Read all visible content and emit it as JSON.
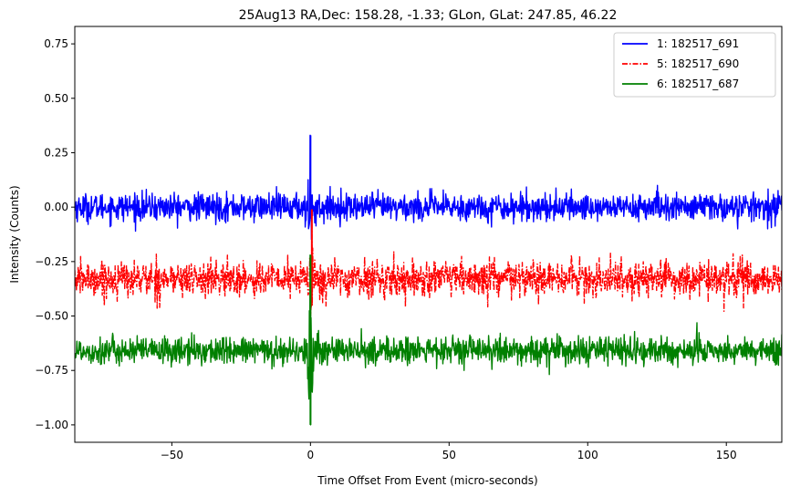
{
  "chart_data": {
    "type": "line",
    "title": "25Aug13 RA,Dec:  158.28,  -1.33; GLon, GLat:  247.85,  46.22",
    "xlabel": "Time Offset From Event (micro-seconds)",
    "ylabel": "Intensity (Counts)",
    "xlim": [
      -85,
      170
    ],
    "ylim": [
      -1.08,
      0.83
    ],
    "xticks": [
      -50,
      0,
      50,
      100,
      150
    ],
    "xtick_labels": [
      "−50",
      "0",
      "50",
      "100",
      "150"
    ],
    "yticks": [
      -1.0,
      -0.75,
      -0.5,
      -0.25,
      0.0,
      0.25,
      0.5,
      0.75
    ],
    "ytick_labels": [
      "−1.00",
      "−0.75",
      "−0.50",
      "−0.25",
      "0.00",
      "0.25",
      "0.50",
      "0.75"
    ],
    "grid": false,
    "legend_position": "top-right",
    "series": [
      {
        "name": "1: 182517_691",
        "color": "#0000ff",
        "style": "solid",
        "baseline": 0.0,
        "noise_amplitude": 0.035,
        "spike": {
          "x": 0.0,
          "peak": 0.33,
          "trough": -0.05
        }
      },
      {
        "name": "5: 182517_690",
        "color": "#ff0000",
        "style": "dashdot",
        "baseline": -0.33,
        "noise_amplitude": 0.045,
        "spike": {
          "x": 0.5,
          "peak": -0.01,
          "trough": -0.45
        }
      },
      {
        "name": "6: 182517_687",
        "color": "#008000",
        "style": "solid",
        "baseline": -0.66,
        "noise_amplitude": 0.035,
        "spike": {
          "x": 0.0,
          "peak": -0.22,
          "trough": -1.0
        }
      }
    ]
  }
}
